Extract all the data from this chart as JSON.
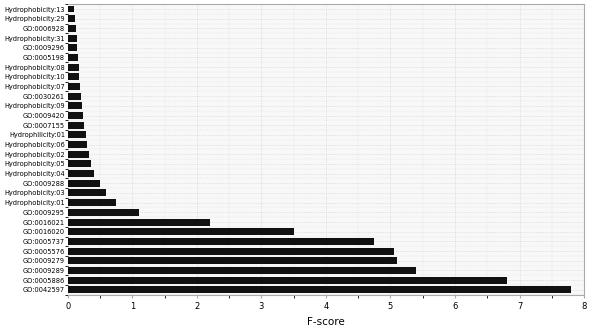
{
  "categories": [
    "Hydrophobicity:13",
    "Hydrophobicity:29",
    "GO:0006928",
    "Hydrophobicity:31",
    "GO:0009296",
    "GO:0005198",
    "Hydrophobicity:08",
    "Hydrophobicity:10",
    "Hydrophobicity:07",
    "GO:0030261",
    "Hydrophobicity:09",
    "GO:0009420",
    "GO:0007155",
    "Hydrophilicity:01",
    "Hydrophobicity:06",
    "Hydrophobicity:02",
    "Hydrophobicity:05",
    "Hydrophobicity:04",
    "GO:0009288",
    "Hydrophobicity:03",
    "Hydrophobicity:01",
    "GO:0009295",
    "GO:0016021",
    "GO:0016020",
    "GO:0005737",
    "GO:0005576",
    "GO:0009279",
    "GO:0009289",
    "GO:0005886",
    "GO:0042597"
  ],
  "values": [
    0.1,
    0.12,
    0.13,
    0.14,
    0.15,
    0.16,
    0.17,
    0.18,
    0.19,
    0.2,
    0.22,
    0.24,
    0.26,
    0.28,
    0.3,
    0.33,
    0.36,
    0.4,
    0.5,
    0.6,
    0.75,
    1.1,
    2.2,
    3.5,
    4.75,
    5.05,
    5.1,
    5.4,
    6.8,
    7.8
  ],
  "bar_color": "#111111",
  "xlabel": "F-score",
  "xlim": [
    0,
    8
  ],
  "xticks": [
    0,
    1,
    2,
    3,
    4,
    5,
    6,
    7,
    8
  ],
  "bar_height": 0.72,
  "label_fontsize": 4.8,
  "tick_fontsize": 6.0,
  "xlabel_fontsize": 7.5,
  "background_color": "#f8f8f8",
  "dot_color": "#cccccc",
  "figure_color": "#ffffff"
}
